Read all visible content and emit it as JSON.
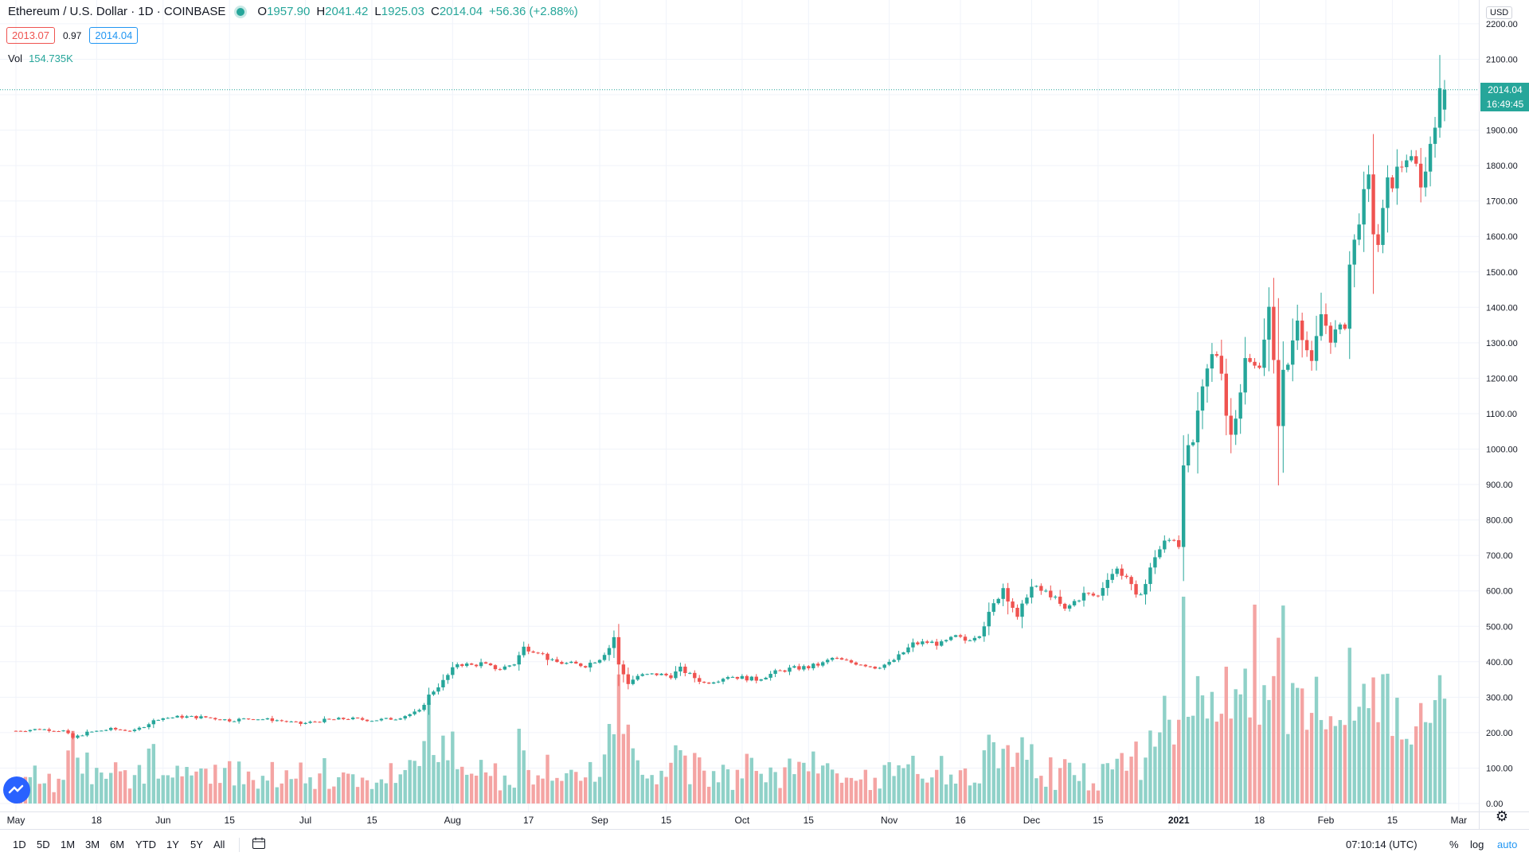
{
  "legend": {
    "symbol": "Ethereum / U.S. Dollar · 1D · COINBASE",
    "open_label": "O",
    "open": "1957.90",
    "high_label": "H",
    "high": "2041.42",
    "low_label": "L",
    "low": "1925.03",
    "close_label": "C",
    "close": "2014.04",
    "change": "+56.36 (+2.88%)",
    "bid": "2013.07",
    "spread": "0.97",
    "ask": "2014.04",
    "volume_label": "Vol",
    "volume": "154.735K"
  },
  "price_axis": {
    "currency": "USD",
    "last_price": "2014.04",
    "countdown": "16:49:45"
  },
  "bottom_toolbar": {
    "ranges": [
      "1D",
      "5D",
      "1M",
      "3M",
      "6M",
      "YTD",
      "1Y",
      "5Y",
      "All"
    ],
    "clock": "07:10:14 (UTC)",
    "percent": "%",
    "log": "log",
    "auto": "auto"
  },
  "colors": {
    "up": "#26a69a",
    "down": "#ef5350",
    "up_volume": "#8fd1c8",
    "down_volume": "#f4a4a3",
    "grid": "#f0f3fa",
    "axis_text": "#131722"
  },
  "chart_data": {
    "type": "candlestick",
    "title": "Ethereum / U.S. Dollar · 1D · COINBASE",
    "y_ticks": [
      "2200.00",
      "2100.00",
      "2000.00",
      "1900.00",
      "1800.00",
      "1700.00",
      "1600.00",
      "1500.00",
      "1400.00",
      "1300.00",
      "1200.00",
      "1100.00",
      "1000.00",
      "900.00",
      "800.00",
      "700.00",
      "600.00",
      "500.00",
      "400.00",
      "300.00",
      "200.00",
      "100.00",
      "0.00"
    ],
    "y_tick_values": [
      2200,
      2100,
      2000,
      1900,
      1800,
      1700,
      1600,
      1500,
      1400,
      1300,
      1200,
      1100,
      1000,
      900,
      800,
      700,
      600,
      500,
      400,
      300,
      200,
      100,
      0
    ],
    "ylim": [
      0,
      2200
    ],
    "x_ticks": [
      {
        "label": "May",
        "day": 0
      },
      {
        "label": "18",
        "day": 17
      },
      {
        "label": "Jun",
        "day": 31
      },
      {
        "label": "15",
        "day": 45
      },
      {
        "label": "Jul",
        "day": 61
      },
      {
        "label": "15",
        "day": 75
      },
      {
        "label": "Aug",
        "day": 92
      },
      {
        "label": "17",
        "day": 108
      },
      {
        "label": "Sep",
        "day": 123
      },
      {
        "label": "15",
        "day": 137
      },
      {
        "label": "Oct",
        "day": 153
      },
      {
        "label": "15",
        "day": 167
      },
      {
        "label": "Nov",
        "day": 184
      },
      {
        "label": "16",
        "day": 199
      },
      {
        "label": "Dec",
        "day": 214
      },
      {
        "label": "15",
        "day": 228
      },
      {
        "label": "2021",
        "day": 245
      },
      {
        "label": "18",
        "day": 262
      },
      {
        "label": "Feb",
        "day": 276
      },
      {
        "label": "15",
        "day": 290
      },
      {
        "label": "Mar",
        "day": 304
      }
    ],
    "start_date": "2020-05-01",
    "close_anchors": [
      [
        0,
        205
      ],
      [
        5,
        210
      ],
      [
        10,
        205
      ],
      [
        12,
        185
      ],
      [
        15,
        200
      ],
      [
        20,
        210
      ],
      [
        25,
        205
      ],
      [
        30,
        240
      ],
      [
        35,
        245
      ],
      [
        40,
        243
      ],
      [
        45,
        235
      ],
      [
        50,
        240
      ],
      [
        55,
        235
      ],
      [
        60,
        225
      ],
      [
        65,
        235
      ],
      [
        70,
        240
      ],
      [
        75,
        235
      ],
      [
        80,
        240
      ],
      [
        85,
        260
      ],
      [
        87,
        305
      ],
      [
        90,
        345
      ],
      [
        93,
        395
      ],
      [
        96,
        390
      ],
      [
        98,
        395
      ],
      [
        100,
        385
      ],
      [
        102,
        380
      ],
      [
        105,
        395
      ],
      [
        107,
        440
      ],
      [
        110,
        430
      ],
      [
        113,
        400
      ],
      [
        116,
        395
      ],
      [
        120,
        390
      ],
      [
        123,
        410
      ],
      [
        125,
        440
      ],
      [
        126,
        470
      ],
      [
        127,
        390
      ],
      [
        129,
        340
      ],
      [
        131,
        360
      ],
      [
        135,
        365
      ],
      [
        138,
        360
      ],
      [
        140,
        380
      ],
      [
        143,
        355
      ],
      [
        145,
        340
      ],
      [
        148,
        350
      ],
      [
        150,
        360
      ],
      [
        153,
        355
      ],
      [
        156,
        350
      ],
      [
        160,
        370
      ],
      [
        163,
        380
      ],
      [
        167,
        385
      ],
      [
        170,
        395
      ],
      [
        172,
        410
      ],
      [
        175,
        400
      ],
      [
        178,
        395
      ],
      [
        181,
        385
      ],
      [
        184,
        395
      ],
      [
        186,
        415
      ],
      [
        189,
        450
      ],
      [
        192,
        455
      ],
      [
        195,
        450
      ],
      [
        198,
        470
      ],
      [
        200,
        460
      ],
      [
        203,
        480
      ],
      [
        206,
        560
      ],
      [
        208,
        610
      ],
      [
        209,
        580
      ],
      [
        210,
        555
      ],
      [
        211,
        520
      ],
      [
        212,
        555
      ],
      [
        213,
        590
      ],
      [
        214,
        610
      ],
      [
        216,
        600
      ],
      [
        218,
        590
      ],
      [
        221,
        545
      ],
      [
        223,
        570
      ],
      [
        225,
        590
      ],
      [
        228,
        585
      ],
      [
        230,
        640
      ],
      [
        232,
        660
      ],
      [
        234,
        640
      ],
      [
        235,
        610
      ],
      [
        236,
        580
      ],
      [
        238,
        620
      ],
      [
        240,
        700
      ],
      [
        242,
        735
      ],
      [
        244,
        750
      ],
      [
        245,
        730
      ],
      [
        246,
        970
      ],
      [
        248,
        1020
      ],
      [
        250,
        1160
      ],
      [
        251,
        1220
      ],
      [
        252,
        1260
      ],
      [
        253,
        1270
      ],
      [
        254,
        1230
      ],
      [
        255,
        1100
      ],
      [
        256,
        1040
      ],
      [
        258,
        1170
      ],
      [
        259,
        1250
      ],
      [
        261,
        1230
      ],
      [
        262,
        1250
      ],
      [
        264,
        1390
      ],
      [
        266,
        1080
      ],
      [
        267,
        1210
      ],
      [
        268,
        1240
      ],
      [
        270,
        1380
      ],
      [
        273,
        1230
      ],
      [
        275,
        1380
      ],
      [
        277,
        1320
      ],
      [
        279,
        1330
      ],
      [
        280,
        1360
      ],
      [
        281,
        1520
      ],
      [
        282,
        1580
      ],
      [
        283,
        1660
      ],
      [
        285,
        1750
      ],
      [
        286,
        1620
      ],
      [
        287,
        1580
      ],
      [
        289,
        1740
      ],
      [
        291,
        1780
      ],
      [
        293,
        1830
      ],
      [
        294,
        1800
      ],
      [
        295,
        1790
      ],
      [
        296,
        1760
      ],
      [
        297,
        1780
      ],
      [
        298,
        1870
      ],
      [
        299,
        1940
      ],
      [
        300,
        1990
      ],
      [
        301,
        2014
      ]
    ],
    "n_days": 302,
    "volume_note": "daily volume bars at bottom, peaks around late Aug and early Jan"
  }
}
